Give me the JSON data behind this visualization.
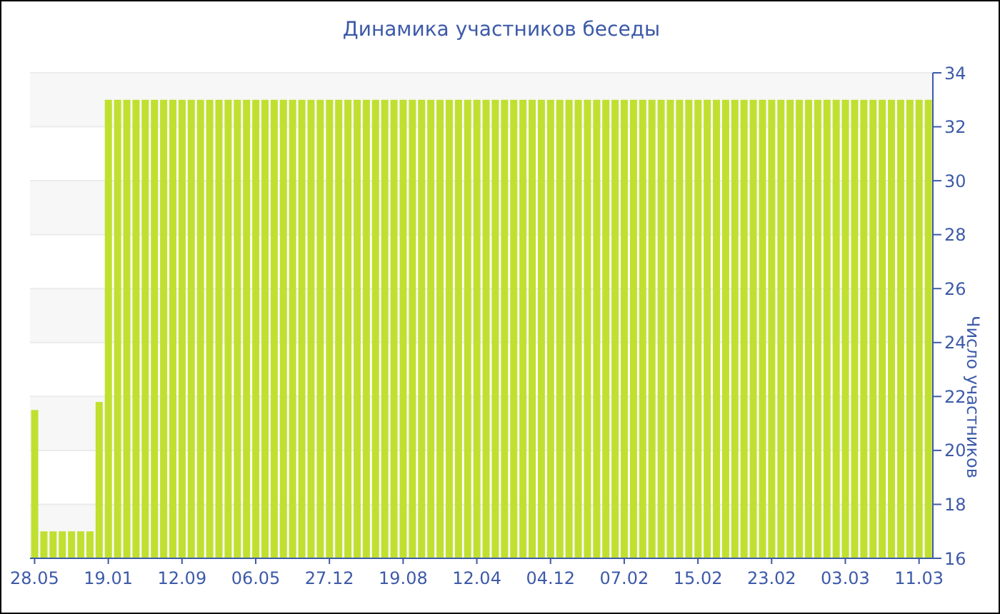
{
  "chart_data": {
    "type": "bar",
    "title": "Динамика участников беседы",
    "ylabel": "Число участников",
    "categories": [
      "28.05",
      null,
      null,
      null,
      null,
      null,
      null,
      null,
      "19.01",
      null,
      null,
      null,
      null,
      null,
      null,
      null,
      "12.09",
      null,
      null,
      null,
      null,
      null,
      null,
      null,
      "06.05",
      null,
      null,
      null,
      null,
      null,
      null,
      null,
      "27.12",
      null,
      null,
      null,
      null,
      null,
      null,
      null,
      "19.08",
      null,
      null,
      null,
      null,
      null,
      null,
      null,
      "12.04",
      null,
      null,
      null,
      null,
      null,
      null,
      null,
      "04.12",
      null,
      null,
      null,
      null,
      null,
      null,
      null,
      "07.02",
      null,
      null,
      null,
      null,
      null,
      null,
      null,
      "15.02",
      null,
      null,
      null,
      null,
      null,
      null,
      null,
      "23.02",
      null,
      null,
      null,
      null,
      null,
      null,
      null,
      "03.03",
      null,
      null,
      null,
      null,
      null,
      null,
      null,
      "11.03",
      null
    ],
    "values": [
      21.5,
      17,
      17,
      17,
      17,
      17,
      17,
      21.8,
      33,
      33,
      33,
      33,
      33,
      33,
      33,
      33,
      33,
      33,
      33,
      33,
      33,
      33,
      33,
      33,
      33,
      33,
      33,
      33,
      33,
      33,
      33,
      33,
      33,
      33,
      33,
      33,
      33,
      33,
      33,
      33,
      33,
      33,
      33,
      33,
      33,
      33,
      33,
      33,
      33,
      33,
      33,
      33,
      33,
      33,
      33,
      33,
      33,
      33,
      33,
      33,
      33,
      33,
      33,
      33,
      33,
      33,
      33,
      33,
      33,
      33,
      33,
      33,
      33,
      33,
      33,
      33,
      33,
      33,
      33,
      33,
      33,
      33,
      33,
      33,
      33,
      33,
      33,
      33,
      33,
      33,
      33,
      33,
      33,
      33,
      33,
      33,
      33,
      33
    ],
    "color": "#c0e030",
    "ylim": [
      16,
      34
    ],
    "yticks": [
      16,
      18,
      20,
      22,
      24,
      26,
      28,
      30,
      32,
      34
    ],
    "grid": "y"
  }
}
